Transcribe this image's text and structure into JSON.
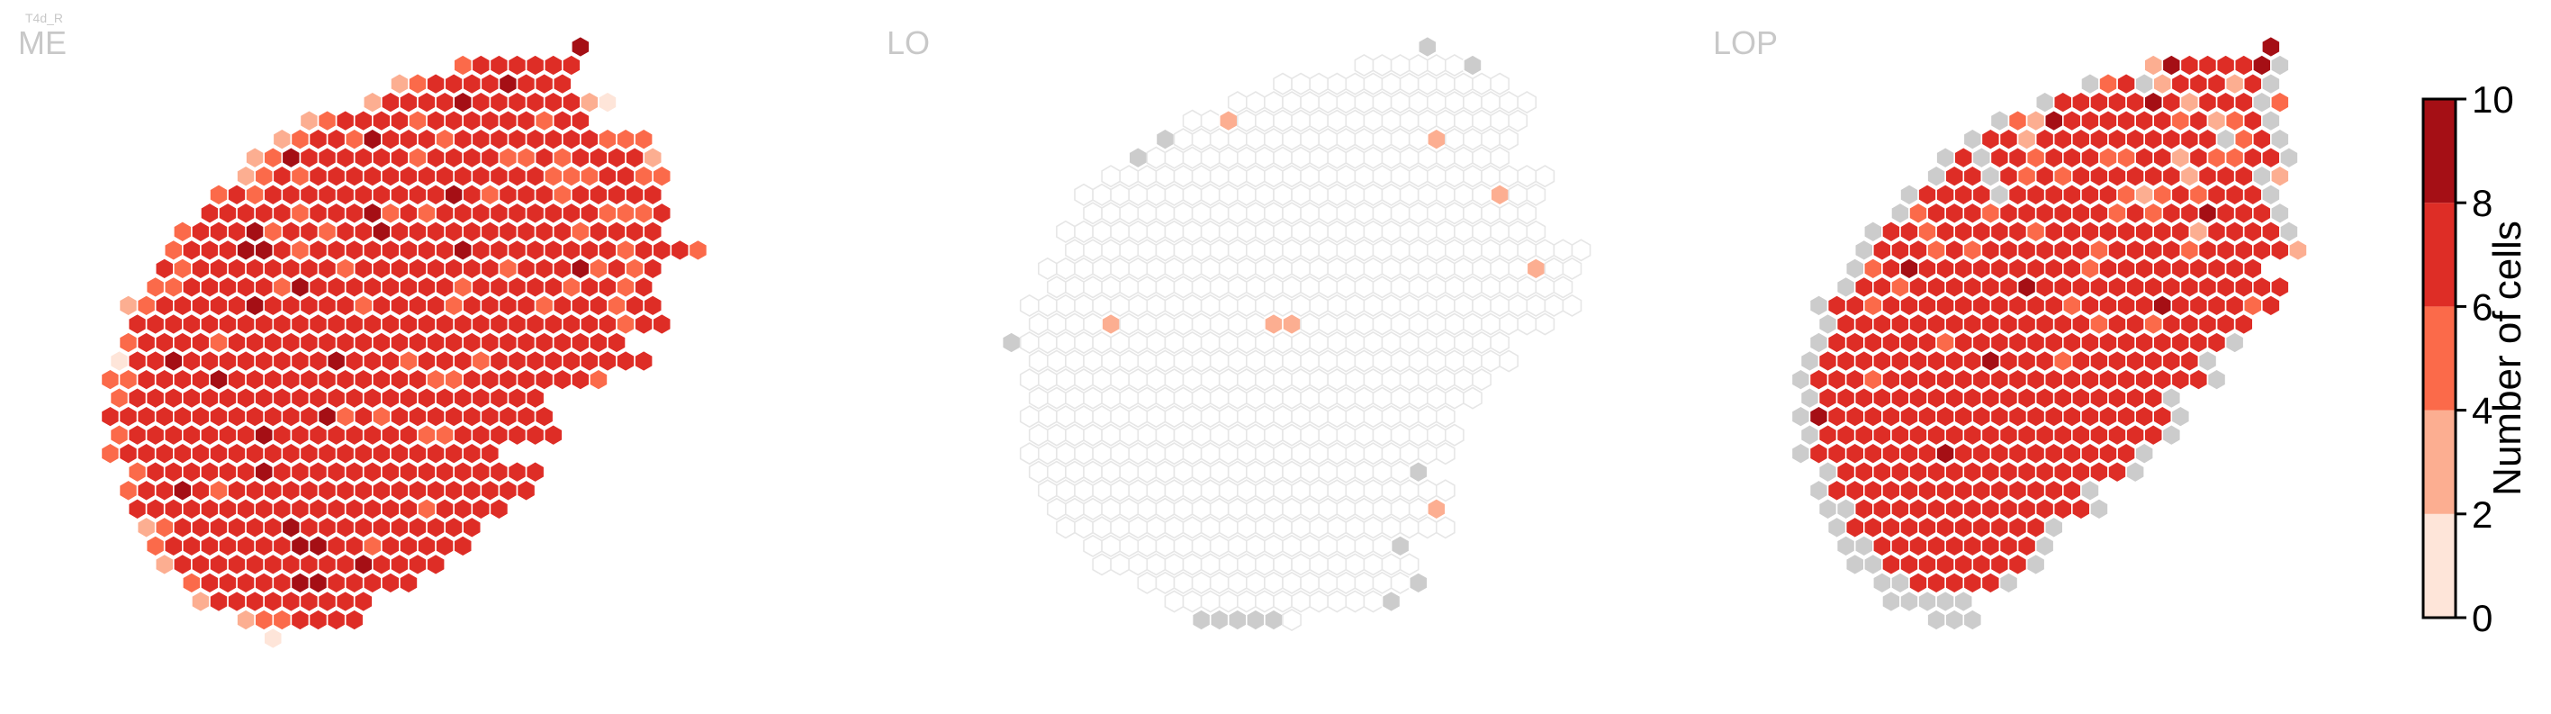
{
  "figure": {
    "cell_type_label": "T4d_R",
    "missing_color": "#cccccc",
    "empty_stroke": "#e6e6e6",
    "title_color": "#c8c8c8",
    "hex_edge_color": "#ffffff"
  },
  "chart_data": {
    "type": "heatmap",
    "description_kind": "hexagonal column map per neuropil",
    "panels": [
      {
        "name": "ME",
        "rows": [
          "...............................9",
          "........................4777777",
          ".....................2576778777",
          "...................36677877677731",
          "................2577675776666566",
          "..............357759666576676766554",
          ".............35877776646666457566762",
          "............347577677776676675456655",
          "...........5757766776666875676567666",
          "..........67666576685756667666665556",
          ".........576785675678767777667656666",
          "........576788757676767686777767656665",
          "........6566776667576676676566685656",
          ".......5566677587667667656666647657",
          "......256677787767656766576665676566",
          "......676667677666767677666766676567",
          "......5776657676776676666766766666",
          ".....167867677767876657675666666776",
          ".....4576678676666666775476666665",
          ".....566677676666766677767666",
          ".....6777776767678575666667666",
          ".....4676777786767676655666677",
          ".....5677776666767767676766",
          "......56677778667667676676766",
          "......56687566777777667667766",
          "......676667677677666756666",
          ".......3576666787676777666",
          ".......566776678867566766",
          "........2676766667787777",
          ".........5676678877666",
          "..........2677767677",
          "............2457766",
          "..............1"
        ]
      },
      {
        "name": "LO",
        "rows": [
          "..............................x",
          "..........................000000x",
          "......................0000000000000",
          "...................00000000000000000",
          ".................0020000000000000000",
          "...............x0000000000000020000",
          "..............x00000000000000000000",
          "............0000000000000000000000000",
          "...........00000000000000000000000200",
          "...........0000000000000000000000000",
          "..........000000000000000000000000000",
          "..........00000000000000000000000000000",
          ".........000000000000000000000000000200",
          ".........00000000000000000000000000000",
          "........0000000000000000000000000000000",
          "........00002000000002200000000000000",
          ".......x000000000000000000000000000",
          "........000000000000000000000000000",
          "........00000000000000000000000000",
          "........0000000000000000000000000",
          "........000000000000000000000000",
          "........000000000000000000000000",
          "........000000000000000000000000",
          "........000000000000000000000x",
          ".........00000000000000000000000",
          ".........0000000000000000000002",
          "..........0000000000000000000000",
          "...........00000000000000000x",
          "............000000000000000000",
          "..............000000000000000x",
          "................000000000000x",
          ".................xxxxx0",
          "..................."
        ]
      },
      {
        "name": "LOP",
        "rows": [
          "...............................9",
          "........................3977779x",
          ".....................x57x377737x",
          "..................x67777863767x5",
          "................x53977666757357x",
          "..............x7737666666766x57x",
          ".............x6x7657675576365577x",
          "............x66x75657676773677x3",
          "...........x6767x77777653575677x",
          "..........x57675667676575669767x",
          ".........x7657676756777667737677x",
          "........x676575677667576775667673",
          "........x5797677776775676777666",
          ".......x765767777877667667676676",
          "......x6657676767677566769767657",
          "......x67667776767667576567667",
          "......x7667775676677677677767x",
          ".....x667677767977657667667x",
          ".....x6775676677677677667677x",
          ".....x7766777677766776777x",
          ".....x97766767776677666776x",
          ".....x7776776767776766767x",
          ".....x676776797776766777x",
          "......x7777666776767777x",
          "......x67667767667677x",
          "......xx7776777767776x",
          ".......x67777677767x",
          ".......xx777667767x",
          "........xx77767777x",
          ".........xx77777x",
          "..........xxxxx",
          "............xxx",
          ".............."
        ]
      }
    ],
    "encoding": {
      "0": "column present, 0 cells",
      "x": "no column data (grey)",
      ".": "no hexagon"
    },
    "colorbar": {
      "label": "Number of cells",
      "ticks": [
        0,
        2,
        4,
        6,
        8,
        10
      ],
      "range": [
        0,
        10
      ],
      "bins": [
        {
          "from": 0,
          "to": 2,
          "color": "#fee5d9"
        },
        {
          "from": 2,
          "to": 4,
          "color": "#fcae91"
        },
        {
          "from": 4,
          "to": 6,
          "color": "#fb6a4a"
        },
        {
          "from": 6,
          "to": 8,
          "color": "#de2d26"
        },
        {
          "from": 8,
          "to": 10,
          "color": "#a50f15"
        }
      ]
    }
  }
}
